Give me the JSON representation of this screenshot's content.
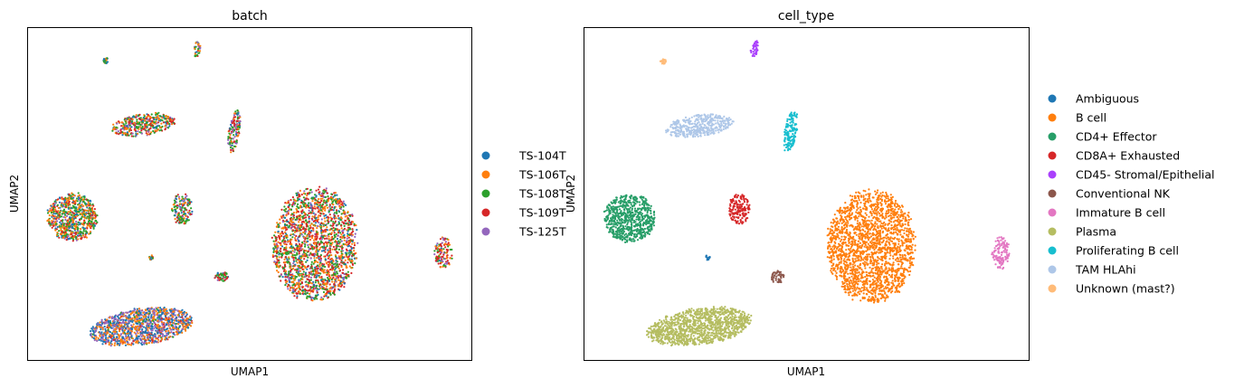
{
  "chart_data": [
    {
      "type": "scatter",
      "title": "batch",
      "xlabel": "UMAP1",
      "ylabel": "UMAP2",
      "xticks": false,
      "yticks": false,
      "grid": false,
      "legend_position": "right",
      "legend": [
        {
          "label": "TS-104T",
          "color": "#1f77b4"
        },
        {
          "label": "TS-106T",
          "color": "#ff7f0e"
        },
        {
          "label": "TS-108T",
          "color": "#2ca02c"
        },
        {
          "label": "TS-109T",
          "color": "#d62728"
        },
        {
          "label": "TS-125T",
          "color": "#9467bd"
        }
      ],
      "clusters": [
        {
          "x": 117.5,
          "y": 67,
          "w": 3,
          "h": 3.5,
          "density": 25,
          "mix": [
            0.3,
            0.2,
            0.5,
            0,
            0
          ]
        },
        {
          "x": 218,
          "y": 54,
          "w": 3.5,
          "h": 9,
          "density": 40,
          "mix": [
            0.2,
            0.2,
            0.3,
            0.1,
            0.2
          ]
        },
        {
          "x": 158,
          "y": 138,
          "w": 35,
          "h": 12,
          "density": 400,
          "mix": [
            0.1,
            0.25,
            0.3,
            0.2,
            0.15
          ]
        },
        {
          "x": 259,
          "y": 145,
          "w": 6,
          "h": 23,
          "density": 140,
          "mix": [
            0.1,
            0.15,
            0.25,
            0.2,
            0.3
          ]
        },
        {
          "x": 80,
          "y": 240,
          "w": 27,
          "h": 26,
          "density": 700,
          "mix": [
            0.15,
            0.3,
            0.35,
            0.15,
            0.05
          ]
        },
        {
          "x": 201,
          "y": 231,
          "w": 12,
          "h": 17,
          "density": 160,
          "mix": [
            0.15,
            0.15,
            0.35,
            0.2,
            0.15
          ]
        },
        {
          "x": 348,
          "y": 270,
          "w": 46,
          "h": 62,
          "density": 2000,
          "mix": [
            0.1,
            0.25,
            0.25,
            0.3,
            0.1
          ]
        },
        {
          "x": 490,
          "y": 280,
          "w": 10,
          "h": 18,
          "density": 130,
          "mix": [
            0.05,
            0.25,
            0.2,
            0.4,
            0.1
          ]
        },
        {
          "x": 245,
          "y": 306,
          "w": 8,
          "h": 5,
          "density": 50,
          "mix": [
            0.1,
            0.1,
            0.5,
            0.2,
            0.1
          ]
        },
        {
          "x": 167,
          "y": 285,
          "w": 2,
          "h": 3,
          "density": 15,
          "mix": [
            0.2,
            0.2,
            0.3,
            0.2,
            0.1
          ]
        },
        {
          "x": 157,
          "y": 361,
          "w": 56,
          "h": 20,
          "density": 1200,
          "mix": [
            0.3,
            0.3,
            0.05,
            0.05,
            0.3
          ]
        }
      ]
    },
    {
      "type": "scatter",
      "title": "cell_type",
      "xlabel": "UMAP1",
      "ylabel": "UMAP2",
      "xticks": false,
      "yticks": false,
      "grid": false,
      "legend_position": "right",
      "legend": [
        {
          "label": "Ambiguous",
          "color": "#1f77b4"
        },
        {
          "label": "B cell",
          "color": "#ff7f0e"
        },
        {
          "label": "CD4+ Effector",
          "color": "#279e68"
        },
        {
          "label": "CD8A+ Exhausted",
          "color": "#d62728"
        },
        {
          "label": "CD45- Stromal/Epithelial",
          "color": "#aa40fc"
        },
        {
          "label": "Conventional NK",
          "color": "#8c564b"
        },
        {
          "label": "Immature B cell",
          "color": "#e377c2"
        },
        {
          "label": "Plasma",
          "color": "#b5bd61"
        },
        {
          "label": "Proliferating B cell",
          "color": "#17becf"
        },
        {
          "label": "TAM HLAhi",
          "color": "#aec7e8"
        },
        {
          "label": "Unknown (mast?)",
          "color": "#ffbb78"
        }
      ],
      "clusters": [
        {
          "x": 733,
          "y": 68,
          "w": 3,
          "h": 3,
          "density": 25,
          "cat": 10
        },
        {
          "x": 834,
          "y": 54,
          "w": 4,
          "h": 9,
          "density": 40,
          "cat": 4
        },
        {
          "x": 773,
          "y": 139,
          "w": 36,
          "h": 12,
          "density": 400,
          "cat": 9
        },
        {
          "x": 874,
          "y": 145,
          "w": 7,
          "h": 23,
          "density": 140,
          "cat": 8
        },
        {
          "x": 696,
          "y": 241,
          "w": 28,
          "h": 26,
          "density": 700,
          "cat": 2
        },
        {
          "x": 817,
          "y": 231,
          "w": 12,
          "h": 17,
          "density": 160,
          "cat": 3
        },
        {
          "x": 963,
          "y": 272,
          "w": 48,
          "h": 62,
          "density": 2000,
          "cat": 1
        },
        {
          "x": 1106,
          "y": 280,
          "w": 10,
          "h": 18,
          "density": 130,
          "cat": 6
        },
        {
          "x": 860,
          "y": 306,
          "w": 8,
          "h": 7,
          "density": 50,
          "cat": 5
        },
        {
          "x": 782,
          "y": 285,
          "w": 3,
          "h": 3,
          "density": 15,
          "cat": 0
        },
        {
          "x": 773,
          "y": 361,
          "w": 57,
          "h": 20,
          "density": 1200,
          "cat": 7
        }
      ]
    }
  ]
}
